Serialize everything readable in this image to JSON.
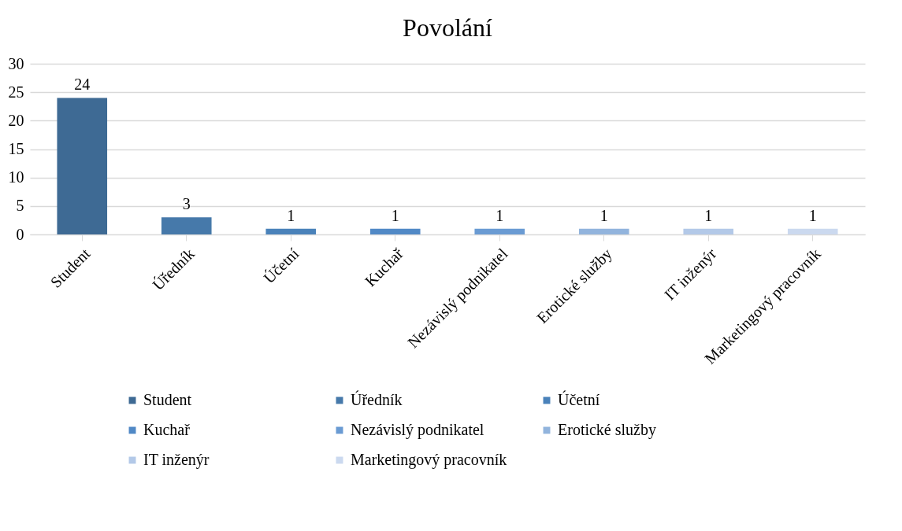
{
  "chart_data": {
    "type": "bar",
    "title": "Povolání",
    "categories": [
      "Student",
      "Úředník",
      "Účetní",
      "Kuchař",
      "Nezávislý podnikatel",
      "Erotické služby",
      "IT inženýr",
      "Marketingový pracovník"
    ],
    "series": [
      {
        "name": "Student",
        "color": "#3e6a94",
        "values": [
          24,
          null,
          null,
          null,
          null,
          null,
          null,
          null
        ]
      },
      {
        "name": "Úředník",
        "color": "#4679aa",
        "values": [
          null,
          3,
          null,
          null,
          null,
          null,
          null,
          null
        ]
      },
      {
        "name": "Účetní",
        "color": "#4a82ba",
        "values": [
          null,
          null,
          1,
          null,
          null,
          null,
          null,
          null
        ]
      },
      {
        "name": "Kuchař",
        "color": "#5189c6",
        "values": [
          null,
          null,
          null,
          1,
          null,
          null,
          null,
          null
        ]
      },
      {
        "name": "Nezávislý podnikatel",
        "color": "#6a9bd3",
        "values": [
          null,
          null,
          null,
          null,
          1,
          null,
          null,
          null
        ]
      },
      {
        "name": "Erotické služby",
        "color": "#92b4dd",
        "values": [
          null,
          null,
          null,
          null,
          null,
          1,
          null,
          null
        ]
      },
      {
        "name": "IT inženýr",
        "color": "#b3c9e8",
        "values": [
          null,
          null,
          null,
          null,
          null,
          null,
          1,
          null
        ]
      },
      {
        "name": "Marketingový pracovník",
        "color": "#cbd9ef",
        "values": [
          null,
          null,
          null,
          null,
          null,
          null,
          null,
          1
        ]
      }
    ],
    "ylim": [
      0,
      30
    ],
    "yticks": [
      0,
      5,
      10,
      15,
      20,
      25,
      30
    ],
    "grid": "y",
    "data_labels": true,
    "legend": "bottom"
  }
}
